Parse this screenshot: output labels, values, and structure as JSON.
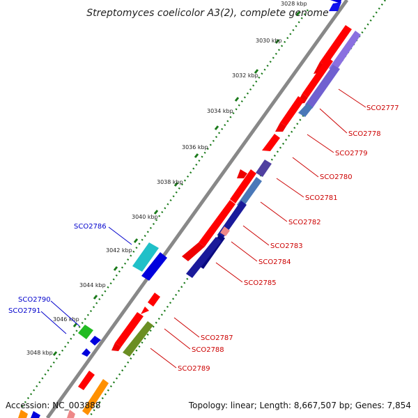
{
  "title": "Streptomyces coelicolor A3(2), complete genome",
  "footer": {
    "accession": "Accession: NC_003888",
    "stats": "Topology: linear; Length: 8,667,507 bp; Genes: 7,854"
  },
  "ticks": [
    {
      "label": "3028 kbp",
      "partial": true
    },
    {
      "label": "3030 kbp"
    },
    {
      "label": "3032 kbp"
    },
    {
      "label": "3034 kbp"
    },
    {
      "label": "3036 kbp"
    },
    {
      "label": "3038 kbp"
    },
    {
      "label": "3040 kbp"
    },
    {
      "label": "3042 kbp"
    },
    {
      "label": "3044 kbp"
    },
    {
      "label": "3046 kbp"
    },
    {
      "label": "3048 kbp"
    }
  ],
  "colors": {
    "backbone": "#888888",
    "scale_dots": "#1a7a1a",
    "forward_label": "#0000cc",
    "reverse_label": "#cc0000"
  },
  "forward_labels": [
    {
      "name": "SCO2786"
    },
    {
      "name": "SCO2790"
    },
    {
      "name": "SCO2791"
    }
  ],
  "reverse_labels": [
    {
      "name": "SCO2777"
    },
    {
      "name": "SCO2778"
    },
    {
      "name": "SCO2779"
    },
    {
      "name": "SCO2780"
    },
    {
      "name": "SCO2781"
    },
    {
      "name": "SCO2782"
    },
    {
      "name": "SCO2783"
    },
    {
      "name": "SCO2784"
    },
    {
      "name": "SCO2785"
    },
    {
      "name": "SCO2787"
    },
    {
      "name": "SCO2788"
    },
    {
      "name": "SCO2789"
    }
  ]
}
